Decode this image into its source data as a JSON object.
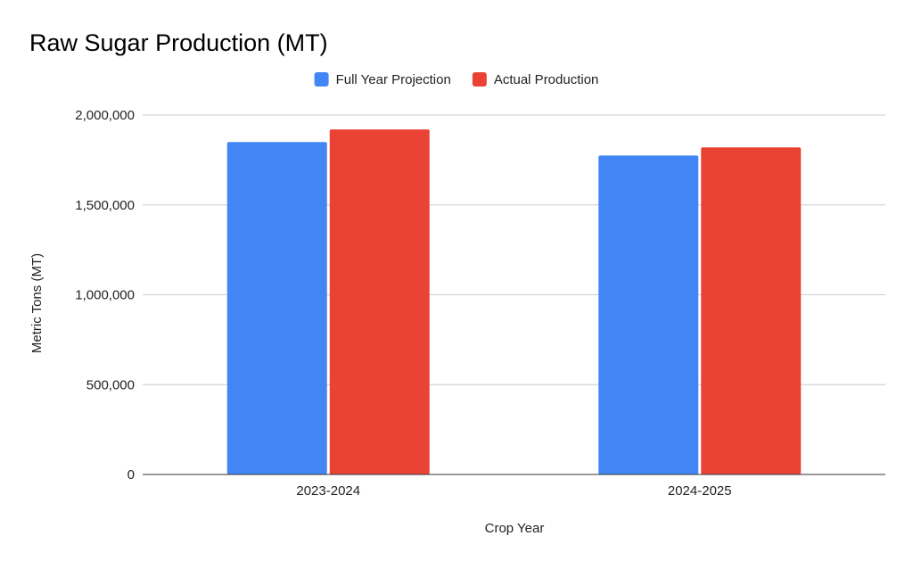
{
  "chart_data": {
    "type": "bar",
    "title": "Raw Sugar Production (MT)",
    "xlabel": "Crop Year",
    "ylabel": "Metric Tons (MT)",
    "categories": [
      "2023-2024",
      "2024-2025"
    ],
    "series": [
      {
        "name": "Full Year Projection",
        "values": [
          1850000,
          1775000
        ],
        "color": "#4285F4"
      },
      {
        "name": "Actual Production",
        "values": [
          1920000,
          1820000
        ],
        "color": "#EA4335"
      }
    ],
    "ylim": [
      0,
      2000000
    ],
    "yticks": [
      0,
      500000,
      1000000,
      1500000,
      2000000
    ],
    "ytick_labels": [
      "0",
      "500,000",
      "1,000,000",
      "1,500,000",
      "2,000,000"
    ],
    "grid": true,
    "legend_position": "top"
  }
}
